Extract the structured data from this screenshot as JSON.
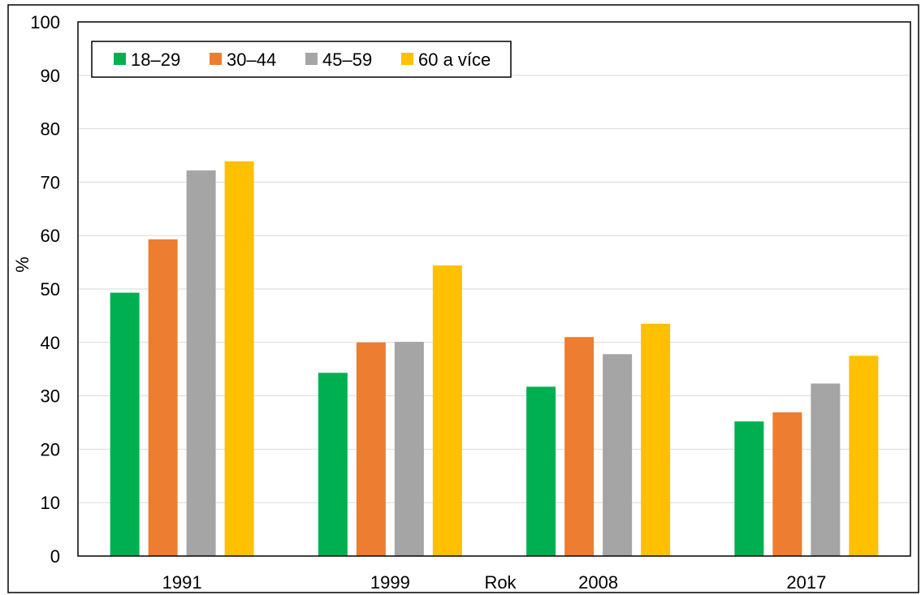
{
  "chart_data": {
    "type": "bar",
    "categories": [
      "1991",
      "1999",
      "2008",
      "2017"
    ],
    "series": [
      {
        "name": "18–29",
        "color": "#00b050",
        "values": [
          49.3,
          34.3,
          31.7,
          25.2
        ]
      },
      {
        "name": "30–44",
        "color": "#ed7d31",
        "values": [
          59.3,
          40.0,
          41.0,
          26.9
        ]
      },
      {
        "name": "45–59",
        "color": "#a5a5a5",
        "values": [
          72.2,
          40.1,
          37.8,
          32.3
        ]
      },
      {
        "name": "60 a více",
        "color": "#ffc000",
        "values": [
          73.9,
          54.4,
          43.5,
          37.5
        ]
      }
    ],
    "title": "",
    "xlabel": "Rok",
    "ylabel": "%",
    "ylim": [
      0,
      100
    ],
    "yticks": [
      "0",
      "10",
      "20",
      "30",
      "40",
      "50",
      "60",
      "70",
      "80",
      "90",
      "100"
    ],
    "grid": "horizontal",
    "legend_position": "top-left"
  }
}
